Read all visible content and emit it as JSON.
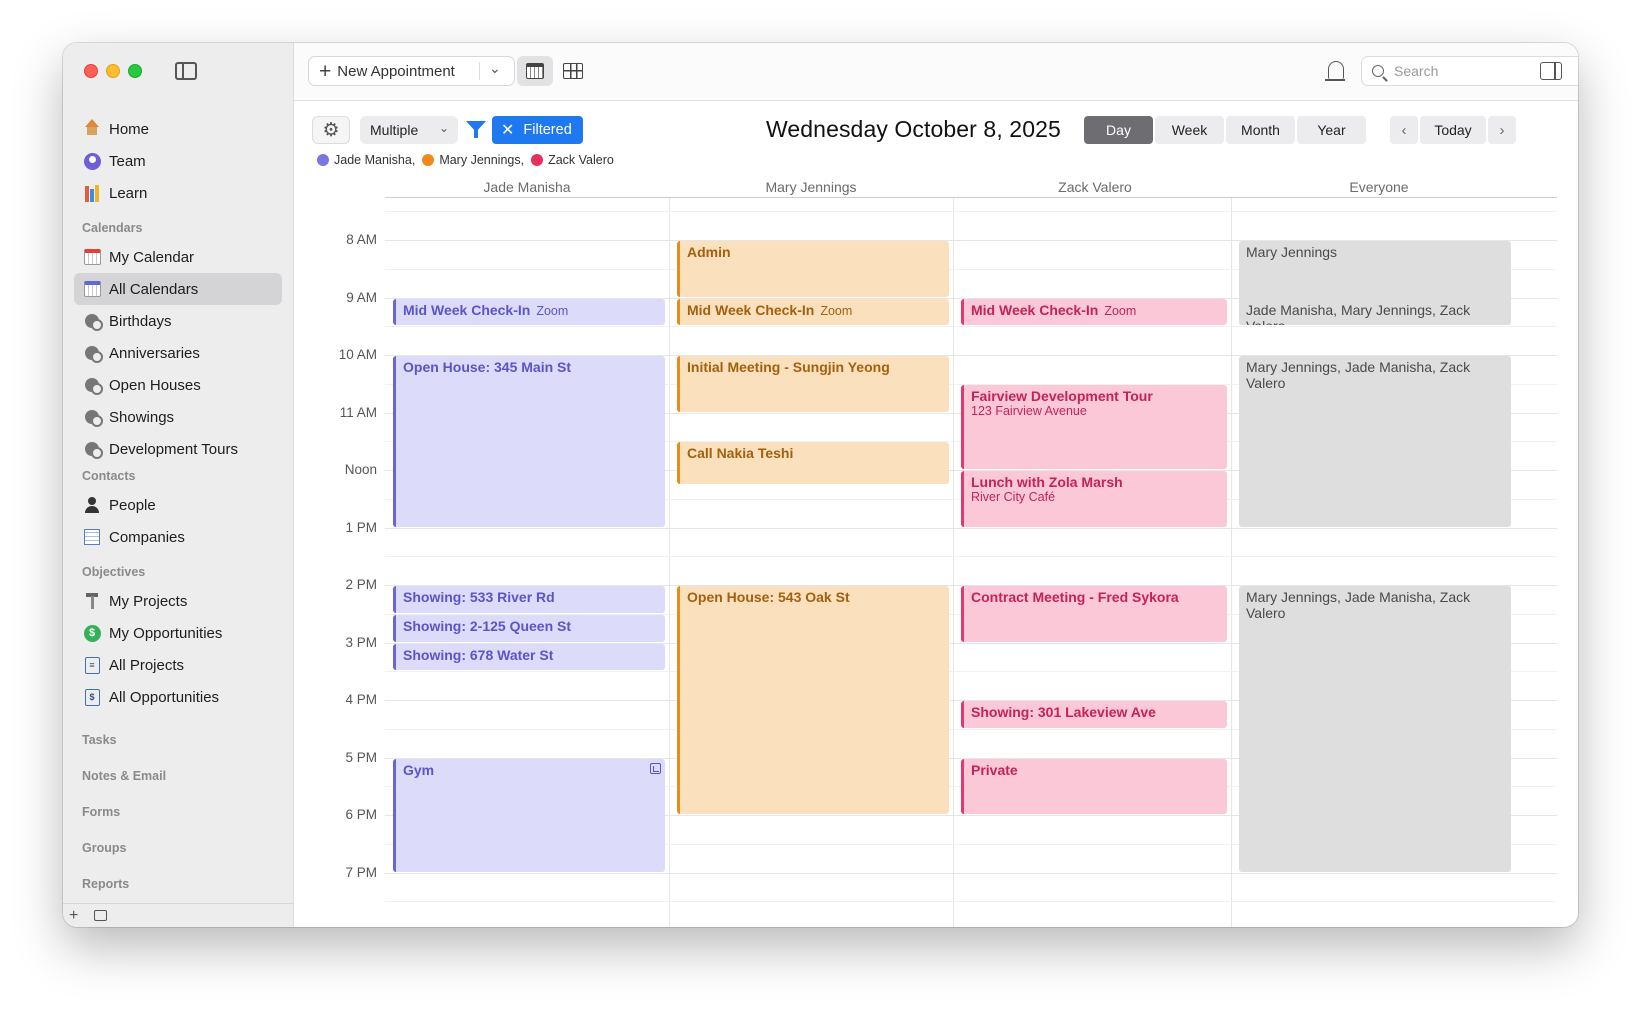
{
  "sidebar": {
    "main_items": [
      {
        "label": "Home",
        "icon": "home-icon"
      },
      {
        "label": "Team",
        "icon": "team-icon"
      },
      {
        "label": "Learn",
        "icon": "books-icon"
      }
    ],
    "sections": {
      "calendars": "Calendars",
      "contacts": "Contacts",
      "objectives": "Objectives",
      "tasks": "Tasks",
      "notes_email": "Notes & Email",
      "forms": "Forms",
      "groups": "Groups",
      "reports": "Reports"
    },
    "calendars": [
      {
        "label": "My Calendar",
        "icon": "calendar-icon"
      },
      {
        "label": "All Calendars",
        "icon": "calendar-icon",
        "active": true
      },
      {
        "label": "Birthdays",
        "icon": "category-icon"
      },
      {
        "label": "Anniversaries",
        "icon": "category-icon"
      },
      {
        "label": "Open Houses",
        "icon": "category-icon"
      },
      {
        "label": "Showings",
        "icon": "category-icon"
      },
      {
        "label": "Development Tours",
        "icon": "category-icon"
      }
    ],
    "contacts": [
      {
        "label": "People",
        "icon": "person-icon"
      },
      {
        "label": "Companies",
        "icon": "building-icon"
      }
    ],
    "objectives": [
      {
        "label": "My Projects",
        "icon": "project-icon"
      },
      {
        "label": "My Opportunities",
        "icon": "dollar-icon"
      },
      {
        "label": "All Projects",
        "icon": "document-icon"
      },
      {
        "label": "All Opportunities",
        "icon": "document-dollar-icon"
      }
    ],
    "bottom": {
      "add": "+"
    }
  },
  "toolbar": {
    "new_appointment": "New Appointment",
    "search_placeholder": "Search"
  },
  "header": {
    "view_select": "Multiple",
    "filter_label": "Filtered",
    "date_title": "Wednesday October 8, 2025",
    "views": [
      "Day",
      "Week",
      "Month",
      "Year"
    ],
    "active_view": "Day",
    "today": "Today",
    "legend": [
      {
        "name": "Jade Manisha,",
        "color": "#7b76e0"
      },
      {
        "name": "Mary Jennings,",
        "color": "#f08a1c"
      },
      {
        "name": "Zack Valero",
        "color": "#ea2d5f"
      }
    ]
  },
  "calendar": {
    "columns": [
      "Jade Manisha",
      "Mary Jennings",
      "Zack Valero",
      "Everyone"
    ],
    "hours": [
      "8 AM",
      "9 AM",
      "10 AM",
      "11 AM",
      "Noon",
      "1 PM",
      "2 PM",
      "3 PM",
      "4 PM",
      "5 PM",
      "6 PM",
      "7 PM"
    ],
    "events": [
      {
        "col": 1,
        "start": 8.0,
        "end": 9.0,
        "title": "Admin",
        "sub": ""
      },
      {
        "col": 3,
        "start": 8.0,
        "end": 9.5,
        "title": "Mary Jennings",
        "sub": ""
      },
      {
        "col": 0,
        "start": 9.0,
        "end": 9.5,
        "title": "Mid Week Check-In",
        "sub": "Zoom"
      },
      {
        "col": 1,
        "start": 9.0,
        "end": 9.5,
        "title": "Mid Week Check-In",
        "sub": "Zoom"
      },
      {
        "col": 2,
        "start": 9.0,
        "end": 9.5,
        "title": "Mid Week Check-In",
        "sub": "Zoom"
      },
      {
        "col": 3,
        "start": 9.0,
        "end": 9.5,
        "title": "Jade Manisha, Mary Jennings, Zack Valero",
        "sub": ""
      },
      {
        "col": 0,
        "start": 10.0,
        "end": 13.0,
        "title": "Open House: 345 Main St",
        "sub": ""
      },
      {
        "col": 1,
        "start": 10.0,
        "end": 11.0,
        "title": "Initial Meeting - Sungjin Yeong",
        "sub": ""
      },
      {
        "col": 3,
        "start": 10.0,
        "end": 13.0,
        "title": "Mary Jennings, Jade Manisha, Zack Valero",
        "sub": ""
      },
      {
        "col": 2,
        "start": 10.5,
        "end": 12.0,
        "title": "Fairview Development Tour",
        "sub2": "123 Fairview Avenue"
      },
      {
        "col": 1,
        "start": 11.5,
        "end": 12.25,
        "title": "Call Nakia Teshi",
        "sub": ""
      },
      {
        "col": 2,
        "start": 12.0,
        "end": 13.0,
        "title": "Lunch with Zola Marsh",
        "sub2": "River City Café"
      },
      {
        "col": 0,
        "start": 14.0,
        "end": 14.5,
        "title": "Showing: 533 River Rd",
        "sub": ""
      },
      {
        "col": 0,
        "start": 14.5,
        "end": 15.0,
        "title": "Showing: 2-125 Queen St",
        "sub": ""
      },
      {
        "col": 0,
        "start": 15.0,
        "end": 15.5,
        "title": "Showing: 678 Water St",
        "sub": ""
      },
      {
        "col": 1,
        "start": 14.0,
        "end": 18.0,
        "title": "Open House: 543 Oak St",
        "sub": ""
      },
      {
        "col": 2,
        "start": 14.0,
        "end": 15.0,
        "title": "Contract Meeting - Fred Sykora",
        "sub": ""
      },
      {
        "col": 3,
        "start": 14.0,
        "end": 19.0,
        "title": "Mary Jennings, Jade Manisha, Zack Valero",
        "sub": ""
      },
      {
        "col": 2,
        "start": 16.0,
        "end": 16.5,
        "title": "Showing: 301 Lakeview Ave",
        "sub": ""
      },
      {
        "col": 0,
        "start": 17.0,
        "end": 19.0,
        "title": "Gym",
        "sub": ""
      },
      {
        "col": 2,
        "start": 17.0,
        "end": 18.0,
        "title": "Private",
        "sub": ""
      }
    ]
  }
}
